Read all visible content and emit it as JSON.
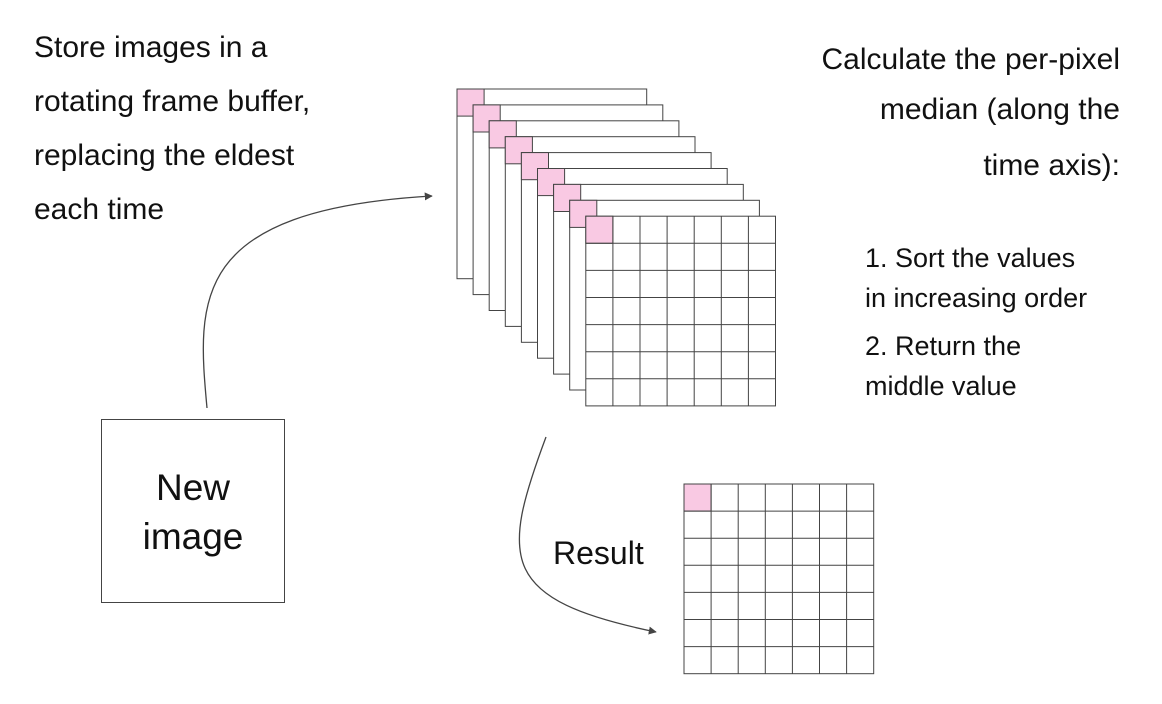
{
  "left_text": {
    "lines": [
      "Store images in a",
      "rotating frame buffer,",
      "replacing the eldest",
      "each time"
    ]
  },
  "right_text": {
    "lines": [
      "Calculate the per-pixel",
      "median (along the",
      "time axis):"
    ]
  },
  "steps": [
    {
      "lines": [
        "1. Sort the values",
        "in increasing order"
      ]
    },
    {
      "lines": [
        "2. Return the",
        "middle value"
      ]
    }
  ],
  "new_image": {
    "lines": [
      "New",
      "image"
    ]
  },
  "result": {
    "label": "Result"
  },
  "frame_buffer": {
    "frame_count": 9,
    "grid_size": 7
  },
  "result_grid": {
    "grid_size": 7
  },
  "colors": {
    "highlight": "#f9c9e3",
    "line": "#444444",
    "arrow": "#444444"
  }
}
